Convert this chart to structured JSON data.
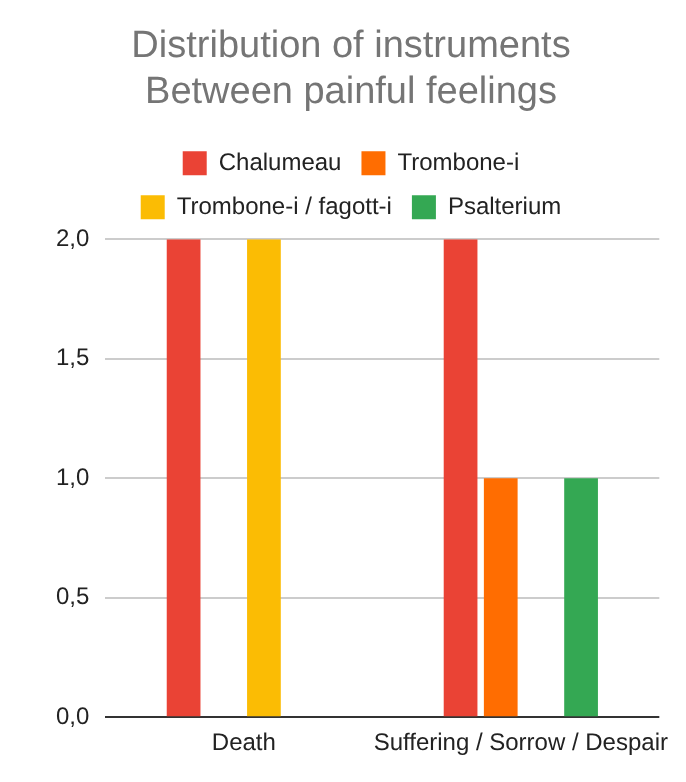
{
  "chart_data": {
    "type": "bar",
    "title": "Distribution of instruments\nBetween painful feelings",
    "categories": [
      "Death",
      "Suffering / Sorrow / Despair"
    ],
    "series": [
      {
        "name": "Chalumeau",
        "color": "#ea4335",
        "values": [
          2,
          2
        ]
      },
      {
        "name": "Trombone-i",
        "color": "#ff6d01",
        "values": [
          null,
          1
        ]
      },
      {
        "name": "Trombone-i / fagott-i",
        "color": "#fbbc04",
        "values": [
          2,
          null
        ]
      },
      {
        "name": "Psalterium",
        "color": "#34a853",
        "values": [
          null,
          1
        ]
      }
    ],
    "ylim": [
      0,
      2
    ],
    "yticks": [
      {
        "value": 0,
        "label": "0,0"
      },
      {
        "value": 0.5,
        "label": "0,5"
      },
      {
        "value": 1,
        "label": "1,0"
      },
      {
        "value": 1.5,
        "label": "1,5"
      },
      {
        "value": 2,
        "label": "2,0"
      }
    ],
    "grid": "y",
    "legend": "top"
  }
}
